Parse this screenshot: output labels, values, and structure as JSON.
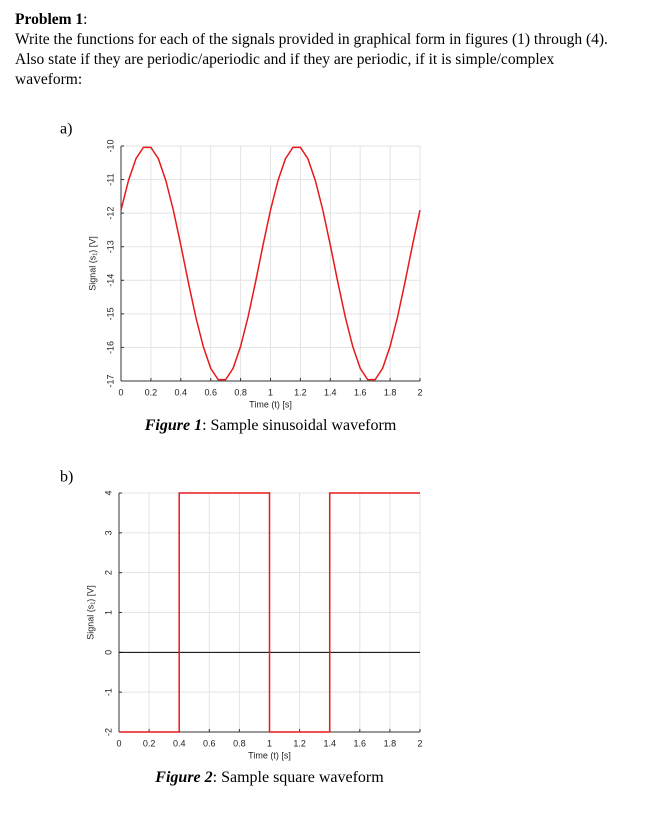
{
  "problem": {
    "heading": "Problem 1",
    "heading_suffix": ":",
    "paragraphs": [
      "Write the functions for each of the signals provided in graphical form in figures (1) through (4).",
      "Also state if they are periodic/aperiodic and if they are periodic, if it is simple/complex",
      "waveform:"
    ]
  },
  "chart_data": [
    {
      "type": "line",
      "label": "a)",
      "caption_label": "Figure 1",
      "caption_text": ": Sample sinusoidal waveform",
      "xlabel": "Time (t) [s]",
      "ylabel": "Signal (s₁) [V]",
      "xlim": [
        0,
        2
      ],
      "ylim": [
        -17,
        -10
      ],
      "grid": true,
      "xticks": [
        0,
        0.2,
        0.4,
        0.6,
        0.8,
        1,
        1.2,
        1.4,
        1.6,
        1.8,
        2
      ],
      "yticks": [
        -10,
        -11,
        -12,
        -13,
        -14,
        -15,
        -16,
        -17
      ],
      "x": [
        0,
        0.05,
        0.1,
        0.15,
        0.2,
        0.25,
        0.3,
        0.35,
        0.4,
        0.45,
        0.5,
        0.55,
        0.6,
        0.65,
        0.7,
        0.75,
        0.8,
        0.85,
        0.9,
        0.95,
        1,
        1.05,
        1.1,
        1.15,
        1.2,
        1.25,
        1.3,
        1.35,
        1.4,
        1.45,
        1.5,
        1.55,
        1.6,
        1.65,
        1.7,
        1.75,
        1.8,
        1.85,
        1.9,
        1.95,
        2
      ],
      "series": [
        {
          "color": "#e8191a",
          "values": [
            -11.91,
            -11.03,
            -10.38,
            -10.04,
            -10.04,
            -10.38,
            -11.03,
            -11.91,
            -12.95,
            -14.05,
            -15.09,
            -15.97,
            -16.62,
            -16.96,
            -16.96,
            -16.62,
            -15.97,
            -15.09,
            -14.05,
            -12.95,
            -11.91,
            -11.03,
            -10.38,
            -10.04,
            -10.04,
            -10.38,
            -11.03,
            -11.91,
            -12.95,
            -14.05,
            -15.09,
            -15.97,
            -16.62,
            -16.96,
            -16.96,
            -16.62,
            -15.97,
            -15.09,
            -14.05,
            -12.95,
            -11.91
          ]
        }
      ]
    },
    {
      "type": "line",
      "label": "b)",
      "caption_label": "Figure 2",
      "caption_text": ": Sample square waveform",
      "xlabel": "Time (t) [s]",
      "ylabel": "Signal (s₁) [V]",
      "xlim": [
        0,
        2
      ],
      "ylim": [
        -2,
        4
      ],
      "grid": true,
      "zero_line": true,
      "xticks": [
        0,
        0.2,
        0.4,
        0.6,
        0.8,
        1,
        1.2,
        1.4,
        1.6,
        1.8,
        2
      ],
      "yticks": [
        4,
        3,
        2,
        1,
        0,
        -1,
        -2
      ],
      "x": [
        0,
        0.4,
        0.4,
        1,
        1,
        1.4,
        1.4,
        2
      ],
      "series": [
        {
          "color": "#e8191a",
          "values": [
            -2,
            -2,
            4,
            4,
            -2,
            -2,
            4,
            4
          ]
        }
      ]
    }
  ]
}
